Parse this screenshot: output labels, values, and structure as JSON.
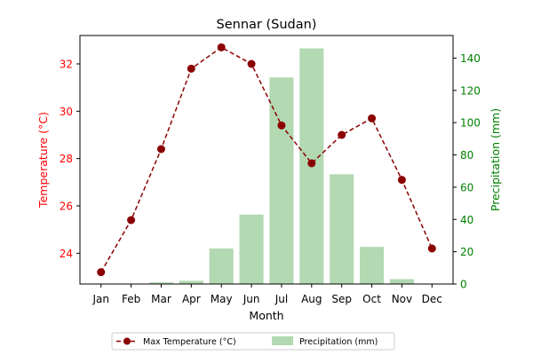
{
  "chart_data": {
    "type": "bar+line",
    "title": "Sennar (Sudan)",
    "xlabel": "Month",
    "ylabel_left": "Temperature (°C)",
    "ylabel_right": "Precipitation (mm)",
    "categories": [
      "Jan",
      "Feb",
      "Mar",
      "Apr",
      "May",
      "Jun",
      "Jul",
      "Aug",
      "Sep",
      "Oct",
      "Nov",
      "Dec"
    ],
    "series": [
      {
        "name": "Max Temperature (°C)",
        "kind": "line",
        "axis": "left",
        "values": [
          23.2,
          25.4,
          28.4,
          31.8,
          32.7,
          32.0,
          29.4,
          27.8,
          29.0,
          29.7,
          27.1,
          24.2
        ]
      },
      {
        "name": "Precipitation (mm)",
        "kind": "bar",
        "axis": "right",
        "values": [
          0,
          0,
          1,
          2,
          22,
          43,
          128,
          146,
          68,
          23,
          3,
          0
        ]
      }
    ],
    "ylim_left": [
      22.7,
      33.2
    ],
    "ylim_right": [
      0,
      154
    ],
    "yticks_left": [
      24,
      26,
      28,
      30,
      32
    ],
    "yticks_right": [
      0,
      20,
      40,
      60,
      80,
      100,
      120,
      140
    ],
    "legend_position": "bottom-center",
    "grid": false,
    "colors": {
      "line": "#8b0000",
      "bar": "#b2d9b2",
      "left_axis": "#ff0000",
      "right_axis": "#008000",
      "title": "#000000"
    }
  }
}
